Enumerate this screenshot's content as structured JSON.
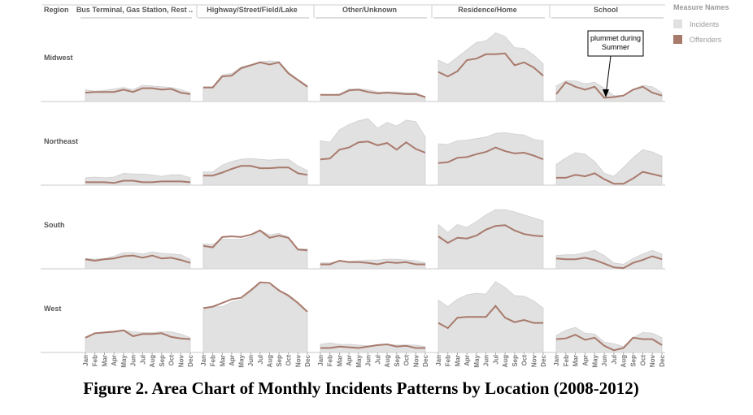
{
  "caption": "Figure 2. Area Chart of Monthly Incidents Patterns by Location (2008-2012)",
  "legend": {
    "title": "Measure Names",
    "items": [
      {
        "label": "Incidents",
        "color": "#e1e1e1"
      },
      {
        "label": "Offenders",
        "color": "#a87a6c"
      }
    ]
  },
  "annotation": {
    "lines": [
      "plummet during",
      "Summer"
    ]
  },
  "chart_data": {
    "type": "area",
    "row_header": "Region",
    "columns": [
      "Bus Terminal, Gas Station, Rest ..",
      "Highway/Street/Field/Lake",
      "Other/Unknown",
      "Residence/Home",
      "School"
    ],
    "rows": [
      "Midwest",
      "Northeast",
      "South",
      "West"
    ],
    "months": [
      "Jan",
      "Feb",
      "Mar",
      "Apr",
      "May",
      "Jun",
      "Jul",
      "Aug",
      "Sep",
      "Oct",
      "Nov",
      "Dec"
    ],
    "ylim": [
      0,
      100
    ],
    "grid": false,
    "legend_position": "top-right",
    "panels": [
      {
        "row": "Midwest",
        "column": "Bus Terminal, Gas Station, Rest ..",
        "incidents": [
          16,
          14,
          15,
          17,
          19,
          16,
          22,
          21,
          20,
          19,
          16,
          12
        ],
        "offenders": [
          12,
          13,
          13,
          13,
          16,
          13,
          18,
          18,
          16,
          17,
          12,
          10
        ]
      },
      {
        "row": "Midwest",
        "column": "Highway/Street/Field/Lake",
        "incidents": [
          20,
          20,
          36,
          38,
          47,
          50,
          54,
          55,
          54,
          40,
          30,
          22
        ],
        "offenders": [
          19,
          19,
          34,
          35,
          45,
          49,
          53,
          50,
          53,
          38,
          29,
          20
        ]
      },
      {
        "row": "Midwest",
        "column": "Other/Unknown",
        "incidents": [
          10,
          9,
          10,
          17,
          17,
          16,
          13,
          13,
          13,
          12,
          12,
          6
        ],
        "offenders": [
          9,
          9,
          9,
          15,
          16,
          13,
          11,
          12,
          11,
          10,
          10,
          6
        ]
      },
      {
        "row": "Midwest",
        "column": "Residence/Home",
        "incidents": [
          56,
          50,
          60,
          70,
          80,
          82,
          93,
          88,
          73,
          72,
          63,
          51
        ],
        "offenders": [
          40,
          34,
          41,
          56,
          58,
          64,
          64,
          65,
          49,
          53,
          46,
          35
        ]
      },
      {
        "row": "Midwest",
        "column": "School",
        "incidents": [
          21,
          28,
          28,
          24,
          26,
          18,
          8,
          8,
          16,
          22,
          20,
          12
        ],
        "offenders": [
          10,
          26,
          20,
          16,
          20,
          5,
          6,
          8,
          16,
          20,
          12,
          8
        ]
      },
      {
        "row": "Northeast",
        "column": "Bus Terminal, Gas Station, Rest ..",
        "incidents": [
          10,
          11,
          10,
          11,
          16,
          15,
          15,
          14,
          12,
          14,
          14,
          10
        ],
        "offenders": [
          4,
          4,
          4,
          3,
          6,
          6,
          4,
          4,
          5,
          5,
          5,
          4
        ]
      },
      {
        "row": "Northeast",
        "column": "Highway/Street/Field/Lake",
        "incidents": [
          18,
          18,
          27,
          32,
          35,
          36,
          35,
          34,
          35,
          35,
          26,
          20
        ],
        "offenders": [
          13,
          13,
          17,
          22,
          26,
          26,
          23,
          23,
          24,
          24,
          16,
          14
        ]
      },
      {
        "row": "Northeast",
        "column": "Other/Unknown",
        "incidents": [
          60,
          58,
          75,
          82,
          87,
          90,
          77,
          85,
          80,
          88,
          86,
          65
        ],
        "offenders": [
          35,
          36,
          48,
          51,
          58,
          59,
          54,
          57,
          48,
          58,
          49,
          44
        ]
      },
      {
        "row": "Northeast",
        "column": "Residence/Home",
        "incidents": [
          56,
          55,
          60,
          61,
          63,
          65,
          70,
          71,
          69,
          68,
          62,
          60
        ],
        "offenders": [
          30,
          31,
          37,
          38,
          42,
          45,
          51,
          46,
          43,
          44,
          40,
          35
        ]
      },
      {
        "row": "Northeast",
        "column": "School",
        "incidents": [
          28,
          37,
          44,
          42,
          32,
          16,
          12,
          24,
          37,
          48,
          45,
          39
        ],
        "offenders": [
          10,
          10,
          14,
          12,
          16,
          8,
          2,
          2,
          9,
          18,
          15,
          12
        ]
      },
      {
        "row": "South",
        "column": "Bus Terminal, Gas Station, Rest ..",
        "incidents": [
          14,
          13,
          14,
          17,
          22,
          22,
          20,
          23,
          21,
          20,
          19,
          13
        ],
        "offenders": [
          13,
          11,
          13,
          14,
          17,
          18,
          15,
          18,
          14,
          15,
          12,
          8
        ]
      },
      {
        "row": "South",
        "column": "Highway/Street/Field/Lake",
        "incidents": [
          34,
          33,
          40,
          40,
          40,
          43,
          52,
          46,
          48,
          43,
          27,
          27
        ],
        "offenders": [
          31,
          29,
          43,
          44,
          43,
          46,
          52,
          42,
          45,
          42,
          26,
          25
        ]
      },
      {
        "row": "South",
        "column": "Other/Unknown",
        "incidents": [
          8,
          8,
          11,
          10,
          11,
          12,
          12,
          13,
          13,
          12,
          11,
          8
        ],
        "offenders": [
          6,
          6,
          11,
          9,
          9,
          8,
          6,
          9,
          8,
          9,
          6,
          6
        ]
      },
      {
        "row": "South",
        "column": "Residence/Home",
        "incidents": [
          60,
          49,
          60,
          56,
          64,
          73,
          80,
          80,
          77,
          73,
          69,
          65
        ],
        "offenders": [
          44,
          35,
          42,
          41,
          45,
          53,
          58,
          59,
          52,
          47,
          45,
          44
        ]
      },
      {
        "row": "South",
        "column": "School",
        "incidents": [
          18,
          19,
          19,
          22,
          25,
          18,
          8,
          6,
          14,
          20,
          25,
          20
        ],
        "offenders": [
          14,
          13,
          13,
          15,
          12,
          7,
          2,
          1,
          8,
          12,
          17,
          13
        ]
      },
      {
        "row": "West",
        "column": "Bus Terminal, Gas Station, Rest ..",
        "incidents": [
          21,
          25,
          28,
          29,
          30,
          28,
          27,
          27,
          28,
          28,
          25,
          20
        ],
        "offenders": [
          20,
          26,
          27,
          28,
          30,
          22,
          25,
          25,
          26,
          21,
          19,
          18
        ]
      },
      {
        "row": "West",
        "column": "Highway/Street/Field/Lake",
        "incidents": [
          58,
          62,
          62,
          68,
          71,
          82,
          93,
          91,
          85,
          75,
          65,
          54
        ],
        "offenders": [
          60,
          62,
          67,
          72,
          74,
          84,
          95,
          94,
          84,
          77,
          67,
          55
        ]
      },
      {
        "row": "West",
        "column": "Other/Unknown",
        "incidents": [
          11,
          13,
          11,
          11,
          10,
          9,
          9,
          11,
          10,
          10,
          10,
          8
        ],
        "offenders": [
          6,
          6,
          8,
          7,
          6,
          8,
          10,
          11,
          8,
          9,
          6,
          6
        ]
      },
      {
        "row": "West",
        "column": "Residence/Home",
        "incidents": [
          71,
          62,
          72,
          78,
          80,
          79,
          96,
          88,
          77,
          76,
          70,
          60
        ],
        "offenders": [
          40,
          33,
          47,
          48,
          48,
          48,
          63,
          47,
          41,
          44,
          40,
          40
        ]
      },
      {
        "row": "West",
        "column": "School",
        "incidents": [
          23,
          30,
          34,
          26,
          25,
          14,
          12,
          8,
          20,
          27,
          26,
          20
        ],
        "offenders": [
          18,
          19,
          24,
          17,
          20,
          9,
          3,
          6,
          20,
          18,
          18,
          10
        ]
      }
    ]
  }
}
